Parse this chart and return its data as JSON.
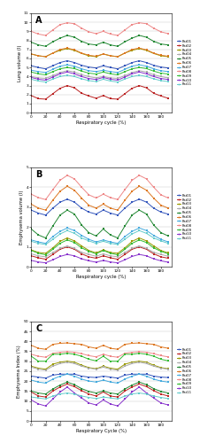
{
  "x": [
    0,
    10,
    20,
    30,
    40,
    50,
    60,
    70,
    80,
    90,
    100,
    110,
    120,
    130,
    140,
    150,
    160,
    170,
    180,
    190
  ],
  "patients": [
    "Pat01",
    "Pat02",
    "Pat03",
    "Pat04",
    "Pat05",
    "Pat06",
    "Pat07",
    "Pat08",
    "Pat09",
    "Pat10",
    "Pat11"
  ],
  "colors": [
    "#3355aa",
    "#cc2222",
    "#888800",
    "#aaaaaa",
    "#228822",
    "#dd8855",
    "#55aadd",
    "#ee9999",
    "#449944",
    "#8833aa",
    "#88ccdd"
  ],
  "panel_A_ylabel": "Lung volume (l)",
  "panel_A_ylim": [
    0,
    11
  ],
  "panel_A_yticks": [
    0,
    1,
    2,
    3,
    4,
    5,
    6,
    7,
    8,
    9,
    10,
    11
  ],
  "panel_A_data": [
    [
      5.2,
      5.0,
      4.85,
      5.2,
      5.55,
      5.75,
      5.55,
      5.25,
      5.05,
      4.95,
      5.2,
      5.0,
      4.85,
      5.2,
      5.55,
      5.75,
      5.55,
      5.25,
      5.05,
      4.95
    ],
    [
      1.9,
      1.55,
      1.5,
      2.1,
      2.7,
      3.0,
      2.75,
      2.15,
      1.85,
      1.6,
      1.9,
      1.55,
      1.5,
      2.1,
      2.7,
      3.0,
      2.75,
      2.15,
      1.85,
      1.6
    ],
    [
      6.5,
      6.3,
      6.2,
      6.6,
      6.9,
      7.1,
      6.9,
      6.55,
      6.3,
      6.2,
      6.5,
      6.3,
      6.2,
      6.6,
      6.9,
      7.1,
      6.9,
      6.55,
      6.3,
      6.2
    ],
    [
      4.0,
      3.85,
      3.8,
      4.1,
      4.45,
      4.65,
      4.5,
      4.2,
      4.0,
      3.85,
      4.0,
      3.85,
      3.8,
      4.1,
      4.45,
      4.65,
      4.5,
      4.2,
      4.0,
      3.85
    ],
    [
      7.8,
      7.5,
      7.35,
      7.85,
      8.25,
      8.55,
      8.35,
      7.9,
      7.6,
      7.5,
      7.8,
      7.5,
      7.35,
      7.85,
      8.25,
      8.55,
      8.35,
      7.9,
      7.6,
      7.5
    ],
    [
      6.5,
      6.3,
      6.2,
      6.6,
      7.0,
      7.15,
      6.95,
      6.6,
      6.35,
      6.25,
      6.5,
      6.3,
      6.2,
      6.6,
      7.0,
      7.15,
      6.95,
      6.6,
      6.35,
      6.25
    ],
    [
      4.7,
      4.55,
      4.45,
      4.8,
      5.15,
      5.3,
      5.15,
      4.85,
      4.65,
      4.55,
      4.7,
      4.55,
      4.45,
      4.8,
      5.15,
      5.3,
      5.15,
      4.85,
      4.65,
      4.55
    ],
    [
      9.0,
      8.7,
      8.55,
      9.15,
      9.75,
      9.95,
      9.85,
      9.35,
      8.95,
      8.75,
      9.0,
      8.7,
      8.55,
      9.15,
      9.75,
      9.95,
      9.85,
      9.35,
      8.95,
      8.75
    ],
    [
      4.5,
      4.3,
      4.2,
      4.55,
      4.85,
      5.0,
      4.88,
      4.6,
      4.38,
      4.28,
      4.5,
      4.3,
      4.2,
      4.55,
      4.85,
      5.0,
      4.88,
      4.6,
      4.38,
      4.28
    ],
    [
      3.9,
      3.7,
      3.6,
      3.95,
      4.3,
      4.5,
      4.3,
      4.0,
      3.78,
      3.68,
      3.9,
      3.7,
      3.6,
      3.95,
      4.3,
      4.5,
      4.3,
      4.0,
      3.78,
      3.68
    ],
    [
      3.7,
      3.5,
      3.4,
      3.72,
      4.0,
      4.15,
      4.0,
      3.75,
      3.55,
      3.45,
      3.7,
      3.5,
      3.4,
      3.72,
      4.0,
      4.15,
      4.0,
      3.75,
      3.55,
      3.45
    ]
  ],
  "panel_B_ylabel": "Emphysema volume (l)",
  "panel_B_ylim": [
    0,
    5
  ],
  "panel_B_yticks": [
    0,
    1,
    2,
    3,
    4,
    5
  ],
  "panel_B_data": [
    [
      2.85,
      2.7,
      2.6,
      2.95,
      3.25,
      3.4,
      3.25,
      2.95,
      2.75,
      2.65,
      2.85,
      2.7,
      2.6,
      2.95,
      3.25,
      3.4,
      3.25,
      2.95,
      2.75,
      2.65
    ],
    [
      0.55,
      0.45,
      0.38,
      0.62,
      0.88,
      1.0,
      0.88,
      0.65,
      0.5,
      0.43,
      0.55,
      0.45,
      0.38,
      0.62,
      0.88,
      1.0,
      0.88,
      0.65,
      0.5,
      0.43
    ],
    [
      0.85,
      0.72,
      0.68,
      0.95,
      1.28,
      1.45,
      1.3,
      1.05,
      0.82,
      0.7,
      0.85,
      0.72,
      0.68,
      0.95,
      1.28,
      1.45,
      1.3,
      1.05,
      0.82,
      0.7
    ],
    [
      0.65,
      0.55,
      0.5,
      0.72,
      0.92,
      1.05,
      0.92,
      0.73,
      0.62,
      0.53,
      0.65,
      0.55,
      0.5,
      0.72,
      0.92,
      1.05,
      0.92,
      0.73,
      0.62,
      0.53
    ],
    [
      1.9,
      1.6,
      1.45,
      2.05,
      2.6,
      2.85,
      2.65,
      2.1,
      1.72,
      1.55,
      1.9,
      1.6,
      1.45,
      2.05,
      2.6,
      2.85,
      2.65,
      2.1,
      1.72,
      1.55
    ],
    [
      3.15,
      2.95,
      2.85,
      3.35,
      3.8,
      4.05,
      3.85,
      3.45,
      3.1,
      2.95,
      3.15,
      2.95,
      2.85,
      3.35,
      3.8,
      4.05,
      3.85,
      3.45,
      3.1,
      2.95
    ],
    [
      1.35,
      1.25,
      1.18,
      1.52,
      1.78,
      1.95,
      1.82,
      1.58,
      1.38,
      1.25,
      1.35,
      1.25,
      1.18,
      1.52,
      1.78,
      1.95,
      1.82,
      1.58,
      1.38,
      1.25
    ],
    [
      3.65,
      3.48,
      3.38,
      3.88,
      4.35,
      4.6,
      4.42,
      4.0,
      3.62,
      3.46,
      3.65,
      3.48,
      3.38,
      3.88,
      4.35,
      4.6,
      4.42,
      4.0,
      3.62,
      3.46
    ],
    [
      0.82,
      0.68,
      0.6,
      0.88,
      1.18,
      1.35,
      1.22,
      0.95,
      0.78,
      0.65,
      0.82,
      0.68,
      0.6,
      0.88,
      1.18,
      1.35,
      1.22,
      0.95,
      0.78,
      0.65
    ],
    [
      0.32,
      0.24,
      0.2,
      0.35,
      0.52,
      0.62,
      0.55,
      0.4,
      0.3,
      0.23,
      0.32,
      0.24,
      0.2,
      0.35,
      0.52,
      0.62,
      0.55,
      0.4,
      0.3,
      0.23
    ],
    [
      1.28,
      1.18,
      1.12,
      1.38,
      1.65,
      1.82,
      1.68,
      1.45,
      1.3,
      1.18,
      1.28,
      1.18,
      1.12,
      1.38,
      1.65,
      1.82,
      1.68,
      1.45,
      1.3,
      1.18
    ]
  ],
  "panel_C_ylabel": "Emphysema Index (%)",
  "panel_C_ylim": [
    0,
    50
  ],
  "panel_C_yticks": [
    0,
    5,
    10,
    15,
    20,
    25,
    30,
    35,
    40,
    45,
    50
  ],
  "panel_C_data": [
    [
      22.5,
      22.0,
      21.5,
      23.0,
      23.5,
      23.5,
      23.5,
      22.5,
      22.0,
      21.8,
      22.5,
      22.0,
      21.5,
      23.0,
      23.5,
      23.5,
      23.5,
      22.5,
      22.0,
      21.8
    ],
    [
      14.5,
      12.5,
      12.0,
      15.0,
      17.0,
      18.5,
      17.2,
      15.2,
      13.5,
      12.5,
      14.5,
      12.5,
      12.0,
      15.0,
      17.0,
      18.5,
      17.2,
      15.2,
      13.5,
      12.5
    ],
    [
      27.5,
      26.5,
      26.0,
      28.5,
      29.5,
      30.0,
      29.5,
      28.0,
      26.8,
      26.2,
      27.5,
      26.5,
      26.0,
      28.5,
      29.5,
      30.0,
      29.5,
      28.0,
      26.8,
      26.2
    ],
    [
      27.0,
      26.0,
      25.5,
      27.5,
      28.8,
      29.5,
      28.8,
      27.5,
      26.5,
      26.0,
      27.0,
      26.0,
      25.5,
      27.5,
      28.8,
      29.5,
      28.8,
      27.5,
      26.5,
      26.0
    ],
    [
      15.0,
      14.0,
      13.5,
      16.0,
      18.0,
      19.5,
      18.2,
      16.2,
      14.8,
      14.0,
      15.0,
      14.0,
      13.5,
      16.0,
      18.0,
      19.5,
      18.2,
      16.2,
      14.8,
      14.0
    ],
    [
      38.0,
      36.5,
      36.0,
      38.5,
      39.0,
      39.2,
      38.8,
      38.5,
      37.2,
      36.5,
      38.0,
      36.5,
      36.0,
      38.5,
      39.0,
      39.2,
      38.8,
      38.5,
      37.2,
      36.5
    ],
    [
      20.5,
      19.5,
      19.0,
      21.0,
      22.5,
      23.5,
      22.5,
      21.0,
      20.0,
      19.5,
      20.5,
      19.5,
      19.0,
      21.0,
      22.5,
      23.5,
      22.5,
      21.0,
      20.0,
      19.5
    ],
    [
      33.5,
      32.5,
      32.0,
      34.0,
      34.5,
      34.8,
      34.5,
      33.8,
      32.8,
      32.2,
      33.5,
      32.5,
      32.0,
      34.0,
      34.5,
      34.8,
      34.5,
      33.8,
      32.8,
      32.2
    ],
    [
      32.5,
      30.0,
      30.0,
      33.5,
      33.5,
      34.0,
      33.5,
      32.5,
      31.0,
      30.2,
      32.5,
      30.0,
      30.0,
      33.5,
      33.5,
      34.0,
      33.5,
      32.5,
      31.0,
      30.2
    ],
    [
      10.5,
      8.5,
      7.5,
      11.0,
      14.5,
      17.0,
      14.0,
      11.5,
      9.0,
      8.0,
      10.5,
      8.5,
      7.5,
      11.0,
      14.5,
      17.0,
      14.0,
      11.5,
      9.0,
      8.0
    ],
    [
      12.0,
      11.5,
      11.0,
      12.5,
      13.5,
      14.0,
      13.5,
      12.5,
      11.8,
      11.2,
      12.0,
      11.5,
      11.0,
      12.5,
      13.5,
      14.0,
      13.5,
      12.5,
      11.8,
      11.2
    ]
  ],
  "xlabel_A": "Respiratory cycle (%)",
  "xlabel_B": "Respiratory cycle (%)",
  "xlabel_C": "Respiratory Cycle (%)",
  "xticks": [
    0,
    20,
    40,
    60,
    80,
    100,
    120,
    140,
    160,
    180
  ],
  "xlim": [
    0,
    195
  ],
  "marker": "s",
  "markersize": 1.5,
  "linewidth": 0.7
}
